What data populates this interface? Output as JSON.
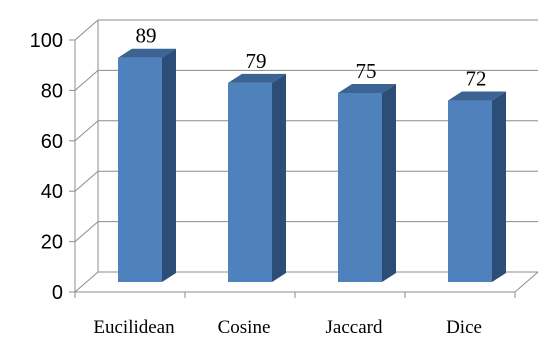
{
  "chart_data": {
    "type": "bar",
    "categories": [
      "Eucilidean",
      "Cosine",
      "Jaccard",
      "Dice"
    ],
    "values": [
      89,
      79,
      75,
      72
    ],
    "data_labels": [
      "89",
      "79",
      "75",
      "72"
    ],
    "yticks": [
      "0",
      "20",
      "40",
      "60",
      "80",
      "100"
    ],
    "ylim": [
      0,
      100
    ],
    "grid": true,
    "style": "3d-column",
    "colors": {
      "bar_front": "#4f81bd",
      "bar_side": "#2c4d75",
      "bar_top": "#3b6394",
      "grid": "#8c8c8c",
      "axis": "#8c8c8c"
    }
  }
}
